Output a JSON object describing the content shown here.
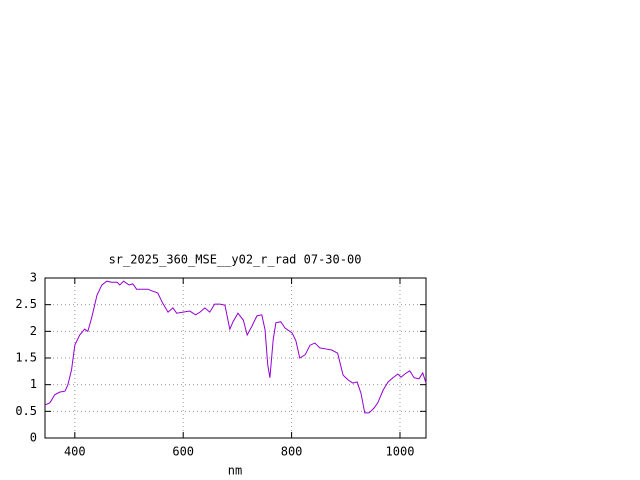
{
  "chart_data": {
    "type": "line",
    "title": "sr_2025_360_MSE__y02_r_rad 07-30-00",
    "x_label": "nm",
    "color": "#9400d3",
    "grid": true,
    "x": [
      345,
      354,
      363,
      372,
      382,
      387,
      394,
      400,
      409,
      418,
      424,
      431,
      441,
      450,
      459,
      468,
      478,
      483,
      490,
      500,
      507,
      514,
      526,
      535,
      542,
      553,
      562,
      572,
      581,
      588,
      600,
      612,
      623,
      631,
      640,
      649,
      658,
      668,
      677,
      686,
      692,
      701,
      711,
      718,
      727,
      736,
      745,
      751,
      756,
      760,
      766,
      771,
      780,
      788,
      801,
      808,
      815,
      825,
      834,
      843,
      852,
      863,
      874,
      885,
      895,
      904,
      913,
      921,
      928,
      935,
      943,
      952,
      959,
      969,
      978,
      987,
      996,
      1002,
      1009,
      1018,
      1026,
      1035,
      1042,
      1048
    ],
    "values": [
      0.62,
      0.66,
      0.81,
      0.86,
      0.88,
      0.99,
      1.28,
      1.74,
      1.93,
      2.04,
      2.0,
      2.25,
      2.68,
      2.87,
      2.94,
      2.92,
      2.92,
      2.87,
      2.94,
      2.87,
      2.89,
      2.79,
      2.79,
      2.79,
      2.76,
      2.72,
      2.53,
      2.36,
      2.44,
      2.34,
      2.36,
      2.38,
      2.31,
      2.36,
      2.44,
      2.36,
      2.51,
      2.51,
      2.49,
      2.04,
      2.18,
      2.34,
      2.21,
      1.93,
      2.1,
      2.29,
      2.31,
      2.03,
      1.37,
      1.13,
      1.84,
      2.16,
      2.18,
      2.06,
      1.97,
      1.82,
      1.5,
      1.56,
      1.74,
      1.78,
      1.69,
      1.67,
      1.65,
      1.59,
      1.18,
      1.09,
      1.03,
      1.05,
      0.84,
      0.47,
      0.47,
      0.56,
      0.66,
      0.9,
      1.05,
      1.13,
      1.2,
      1.14,
      1.2,
      1.26,
      1.13,
      1.11,
      1.22,
      1.03
    ],
    "xlim": [
      345,
      1048
    ],
    "xticks": [
      400,
      600,
      800,
      1000
    ],
    "ylim": [
      0,
      3
    ],
    "yticks": [
      0,
      0.5,
      1,
      1.5,
      2,
      2.5,
      3
    ]
  }
}
